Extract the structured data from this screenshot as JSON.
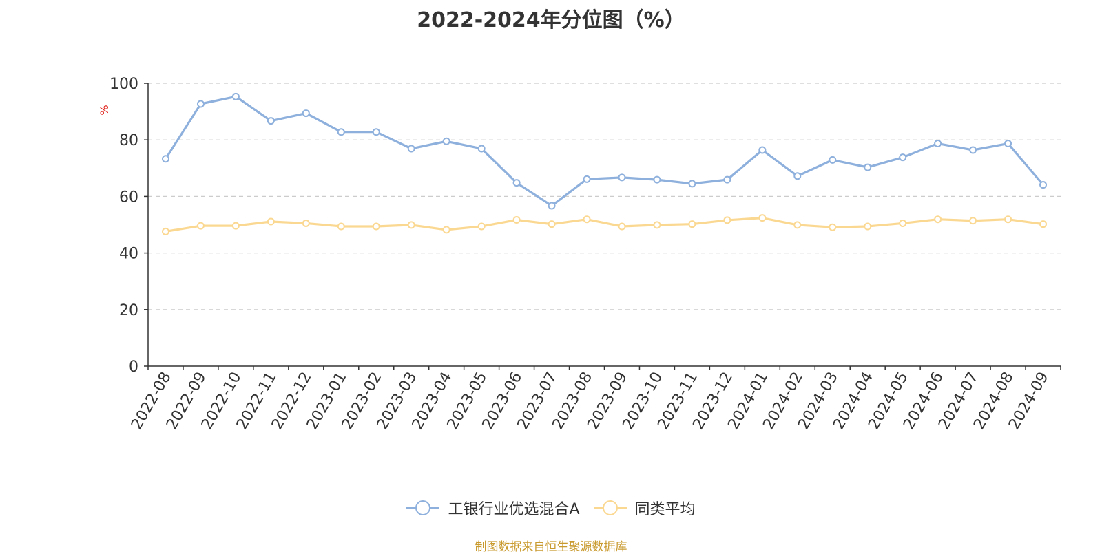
{
  "title": "2022-2024年分位图（%）",
  "source_note": "制图数据来自恒生聚源数据库",
  "colors": {
    "series_a": "#8eb0dc",
    "series_b": "#fbd892",
    "ylabel": "#e0201a",
    "axis": "#333333",
    "grid": "#cccccc"
  },
  "chart_data": {
    "type": "line",
    "title": "2022-2024年分位图（%）",
    "ylabel": "%",
    "ylim": [
      0,
      100
    ],
    "yticks": [
      0,
      20,
      40,
      60,
      80,
      100
    ],
    "grid": true,
    "legend_position": "bottom",
    "categories": [
      "2022-08",
      "2022-09",
      "2022-10",
      "2022-11",
      "2022-12",
      "2023-01",
      "2023-02",
      "2023-03",
      "2023-04",
      "2023-05",
      "2023-06",
      "2023-07",
      "2023-08",
      "2023-09",
      "2023-10",
      "2023-11",
      "2023-12",
      "2024-01",
      "2024-02",
      "2024-03",
      "2024-04",
      "2024-05",
      "2024-06",
      "2024-07",
      "2024-08",
      "2024-09"
    ],
    "series": [
      {
        "name": "工银行业优选混合A",
        "values": [
          73.3,
          92.7,
          95.3,
          86.7,
          89.4,
          82.8,
          82.8,
          76.9,
          79.5,
          76.9,
          64.8,
          56.7,
          66.1,
          66.7,
          65.9,
          64.5,
          65.9,
          76.4,
          67.2,
          72.9,
          70.3,
          73.8,
          78.7,
          76.4,
          78.7,
          64.1
        ]
      },
      {
        "name": "同类平均",
        "values": [
          47.6,
          49.6,
          49.6,
          51.1,
          50.5,
          49.4,
          49.4,
          49.9,
          48.2,
          49.4,
          51.7,
          50.2,
          51.9,
          49.4,
          49.9,
          50.2,
          51.6,
          52.4,
          49.9,
          49.1,
          49.4,
          50.5,
          51.9,
          51.4,
          51.9,
          50.2
        ]
      }
    ]
  }
}
